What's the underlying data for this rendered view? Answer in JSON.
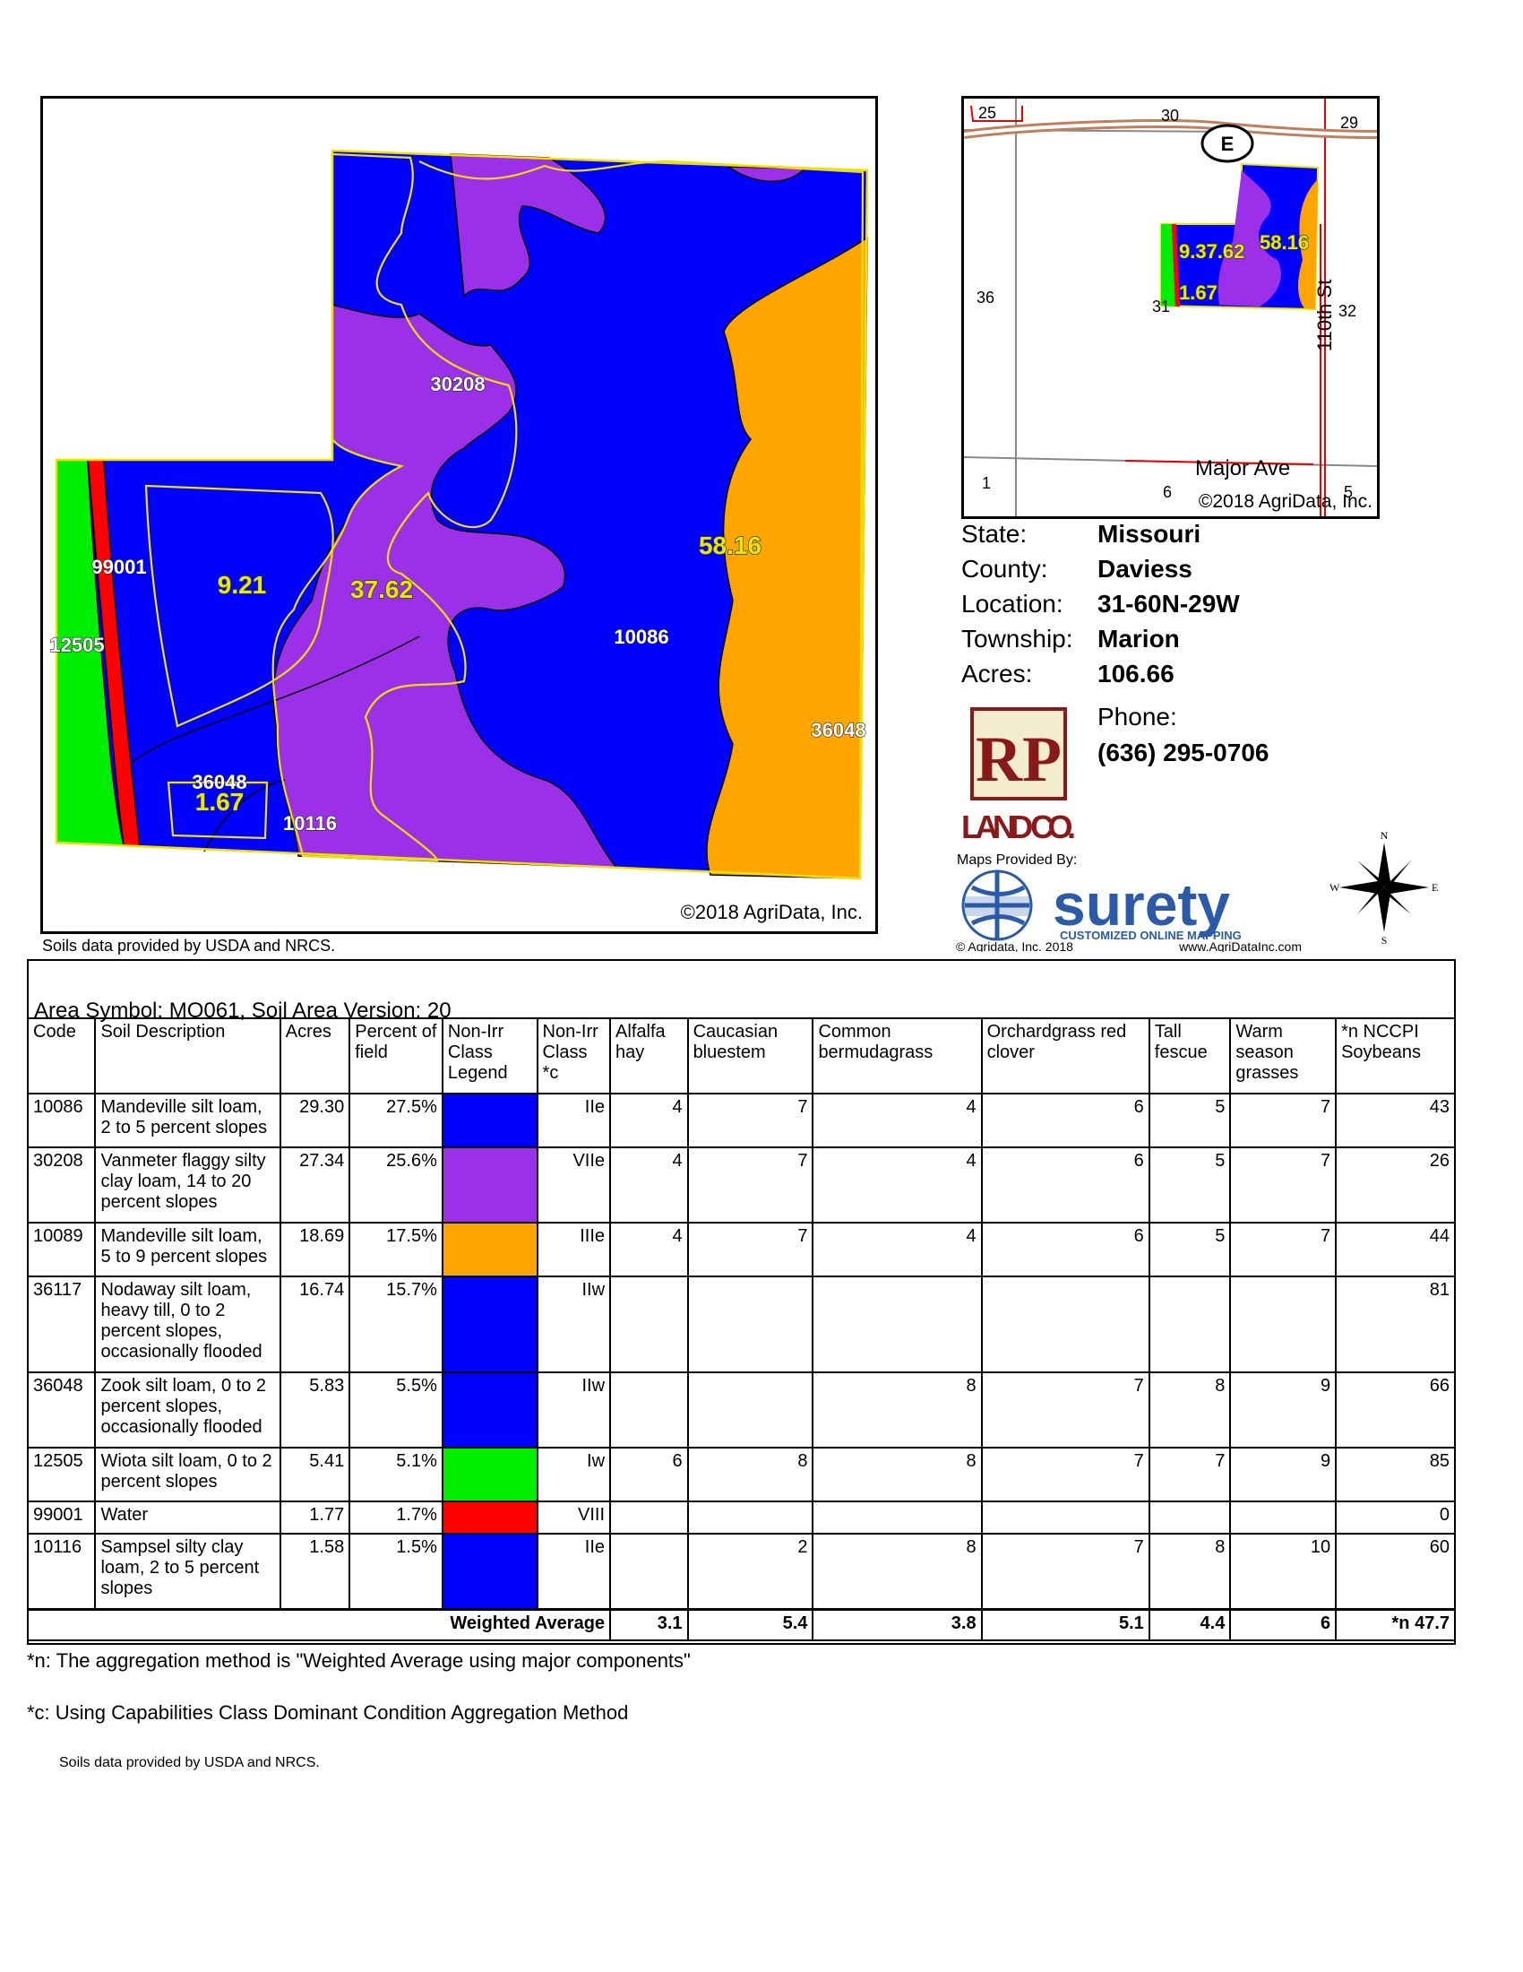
{
  "main_map": {
    "copyright": "©2018 AgriData, Inc.",
    "soil_labels": [
      "30208",
      "99001",
      "12505",
      "10086",
      "36048",
      "36048",
      "10116"
    ],
    "acre_labels": [
      "9.21",
      "37.62",
      "58.16",
      "1.67"
    ]
  },
  "soils_credit": "Soils data provided by USDA and NRCS.",
  "inset_map": {
    "section_numbers": [
      "25",
      "30",
      "29",
      "36",
      "31",
      "32",
      "1",
      "6",
      "5"
    ],
    "route_shield": "E",
    "road_labels": [
      "110th St",
      "Major Ave"
    ],
    "acre_labels": [
      "9.37.62",
      "58.16",
      "1.67"
    ],
    "copyright": "©2018 AgriData, Inc."
  },
  "info": {
    "state_label": "State:",
    "state_value": "Missouri",
    "county_label": "County:",
    "county_value": "Daviess",
    "location_label": "Location:",
    "location_value": "31-60N-29W",
    "township_label": "Township:",
    "township_value": "Marion",
    "acres_label": "Acres:",
    "acres_value": "106.66",
    "phone_label": "Phone:",
    "phone_value": "(636) 295-0706"
  },
  "branding": {
    "logo_letters": "RP",
    "logo_name": "LAND CO.",
    "maps_provided_by": "Maps Provided By:",
    "surety_word": "surety",
    "surety_tagline": "CUSTOMIZED ONLINE MAPPING",
    "agridata_copyright": "© Agridata, Inc. 2018",
    "agridata_url": "www.AgriDataInc.com",
    "compass": {
      "n": "N",
      "s": "S",
      "e": "E",
      "w": "W"
    }
  },
  "table": {
    "area_title": "Area Symbol: MO061, Soil Area Version: 20",
    "headers": [
      "Code",
      "Soil Description",
      "Acres",
      "Percent of field",
      "Non-Irr Class Legend",
      "Non-Irr Class *c",
      "Alfalfa hay",
      "Caucasian bluestem",
      "Common bermudagrass",
      "Orchardgrass red clover",
      "Tall fescue",
      "Warm season grasses",
      "*n NCCPI Soybeans"
    ],
    "rows": [
      {
        "code": "10086",
        "desc": "Mandeville silt loam, 2 to 5 percent slopes",
        "acres": "29.30",
        "pct": "27.5%",
        "color": "#0000ff",
        "cls": "IIe",
        "alfalfa": "4",
        "caucasian": "7",
        "bermuda": "4",
        "orchard": "6",
        "fescue": "5",
        "warm": "7",
        "nccpi": "43"
      },
      {
        "code": "30208",
        "desc": "Vanmeter flaggy silty clay loam, 14 to 20 percent slopes",
        "acres": "27.34",
        "pct": "25.6%",
        "color": "#9b30e8",
        "cls": "VIIe",
        "alfalfa": "4",
        "caucasian": "7",
        "bermuda": "4",
        "orchard": "6",
        "fescue": "5",
        "warm": "7",
        "nccpi": "26"
      },
      {
        "code": "10089",
        "desc": "Mandeville silt loam, 5 to 9 percent slopes",
        "acres": "18.69",
        "pct": "17.5%",
        "color": "#ffa500",
        "cls": "IIIe",
        "alfalfa": "4",
        "caucasian": "7",
        "bermuda": "4",
        "orchard": "6",
        "fescue": "5",
        "warm": "7",
        "nccpi": "44"
      },
      {
        "code": "36117",
        "desc": "Nodaway silt loam, heavy till, 0 to 2 percent slopes, occasionally flooded",
        "acres": "16.74",
        "pct": "15.7%",
        "color": "#0000ff",
        "cls": "IIw",
        "alfalfa": "",
        "caucasian": "",
        "bermuda": "",
        "orchard": "",
        "fescue": "",
        "warm": "",
        "nccpi": "81"
      },
      {
        "code": "36048",
        "desc": "Zook silt loam, 0 to 2 percent slopes, occasionally flooded",
        "acres": "5.83",
        "pct": "5.5%",
        "color": "#0000ff",
        "cls": "IIw",
        "alfalfa": "",
        "caucasian": "",
        "bermuda": "8",
        "orchard": "7",
        "fescue": "8",
        "warm": "9",
        "nccpi": "66"
      },
      {
        "code": "12505",
        "desc": "Wiota silt loam, 0 to 2 percent slopes",
        "acres": "5.41",
        "pct": "5.1%",
        "color": "#00ee00",
        "cls": "Iw",
        "alfalfa": "6",
        "caucasian": "8",
        "bermuda": "8",
        "orchard": "7",
        "fescue": "7",
        "warm": "9",
        "nccpi": "85"
      },
      {
        "code": "99001",
        "desc": "Water",
        "acres": "1.77",
        "pct": "1.7%",
        "color": "#ff0000",
        "cls": "VIII",
        "alfalfa": "",
        "caucasian": "",
        "bermuda": "",
        "orchard": "",
        "fescue": "",
        "warm": "",
        "nccpi": "0"
      },
      {
        "code": "10116",
        "desc": "Sampsel silty clay loam, 2 to 5 percent slopes",
        "acres": "1.58",
        "pct": "1.5%",
        "color": "#0000ff",
        "cls": "IIe",
        "alfalfa": "",
        "caucasian": "2",
        "bermuda": "8",
        "orchard": "7",
        "fescue": "8",
        "warm": "10",
        "nccpi": "60"
      }
    ],
    "avg": {
      "label": "Weighted Average",
      "alfalfa": "3.1",
      "caucasian": "5.4",
      "bermuda": "3.8",
      "orchard": "5.1",
      "fescue": "4.4",
      "warm": "6",
      "nccpi": "*n 47.7"
    }
  },
  "footnotes": {
    "n": "*n: The aggregation method is \"Weighted Average using major components\"",
    "c": "*c:  Using Capabilities Class Dominant Condition Aggregation Method",
    "credit": "Soils data provided by USDA and NRCS."
  }
}
